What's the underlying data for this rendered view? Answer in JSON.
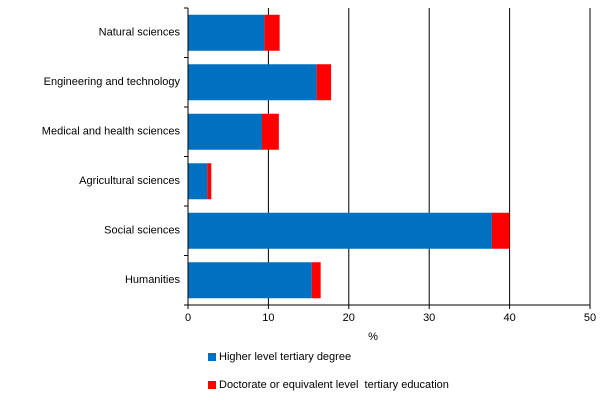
{
  "chart_data": {
    "type": "stacked-barh",
    "categories": [
      "Natural sciences",
      "Engineering and technology",
      "Medical and health sciences",
      "Agricultural sciences",
      "Social sciences",
      "Humanities"
    ],
    "series": [
      {
        "name": "Higher level tertiary degree",
        "color": "#0070c0",
        "values": [
          9.5,
          16.0,
          9.2,
          2.4,
          37.8,
          15.4
        ]
      },
      {
        "name": "Doctorate or equivalent level  tertiary education",
        "color": "#ff0000",
        "values": [
          1.9,
          1.8,
          2.1,
          0.5,
          2.2,
          1.1
        ]
      }
    ],
    "xlabel": "%",
    "xlim": [
      0,
      50
    ],
    "xticks": [
      0,
      10,
      20,
      30,
      40,
      50
    ],
    "grid": true,
    "legend": "bottom"
  }
}
